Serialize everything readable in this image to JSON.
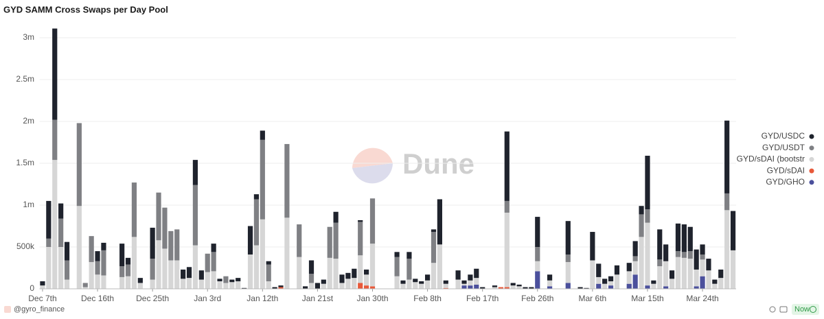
{
  "chart_data": {
    "type": "stacked_bar",
    "title": "GYD SAMM Cross Swaps per Day Pool",
    "categories": [
      "Dec 7th",
      null,
      null,
      null,
      null,
      null,
      null,
      null,
      null,
      "Dec 16th",
      null,
      null,
      null,
      null,
      null,
      null,
      null,
      null,
      "Dec 25th",
      null,
      null,
      null,
      null,
      null,
      null,
      null,
      null,
      "Jan 3rd",
      null,
      null,
      null,
      null,
      null,
      null,
      null,
      null,
      "Jan 12th",
      null,
      null,
      null,
      null,
      null,
      null,
      null,
      null,
      "Jan 21st",
      null,
      null,
      null,
      null,
      null,
      null,
      null,
      null,
      "Jan 30th",
      null,
      null,
      null,
      null,
      null,
      null,
      null,
      null,
      "Feb 8th",
      null,
      null,
      null,
      null,
      null,
      null,
      null,
      null,
      "Feb 17th",
      null,
      null,
      null,
      null,
      null,
      null,
      null,
      null,
      "Feb 26th",
      null,
      null,
      null,
      null,
      null,
      null,
      null,
      null,
      "Mar 6th",
      null,
      null,
      null,
      null,
      null,
      null,
      null,
      null,
      "Mar 15th",
      null,
      null,
      null,
      null,
      null,
      null,
      null,
      null,
      "Mar 24th",
      null,
      null,
      null,
      null,
      null
    ],
    "series": [
      {
        "name": "GYD/USDC",
        "color": "#1f232d",
        "values": [
          50000,
          450000,
          1090000,
          180000,
          220000,
          0,
          0,
          0,
          0,
          120000,
          90000,
          0,
          0,
          270000,
          80000,
          0,
          60000,
          0,
          370000,
          0,
          0,
          0,
          0,
          110000,
          130000,
          300000,
          110000,
          0,
          100000,
          30000,
          0,
          30000,
          40000,
          10000,
          340000,
          60000,
          110000,
          40000,
          20000,
          20000,
          0,
          0,
          0,
          30000,
          160000,
          70000,
          50000,
          0,
          130000,
          100000,
          70000,
          110000,
          20000,
          60000,
          0,
          0,
          0,
          0,
          60000,
          40000,
          80000,
          40000,
          30000,
          70000,
          30000,
          540000,
          40000,
          0,
          110000,
          40000,
          70000,
          110000,
          20000,
          0,
          20000,
          0,
          830000,
          30000,
          20000,
          20000,
          20000,
          360000,
          0,
          70000,
          0,
          0,
          400000,
          0,
          20000,
          10000,
          340000,
          160000,
          60000,
          60000,
          110000,
          0,
          100000,
          180000,
          100000,
          640000,
          40000,
          360000,
          200000,
          100000,
          330000,
          330000,
          290000,
          240000,
          120000,
          140000,
          50000,
          100000,
          870000,
          470000
        ]
      },
      {
        "name": "GYD/USDT",
        "color": "#7f8084",
        "values": [
          0,
          100000,
          480000,
          340000,
          230000,
          0,
          990000,
          50000,
          310000,
          160000,
          300000,
          0,
          0,
          130000,
          140000,
          650000,
          0,
          0,
          250000,
          570000,
          490000,
          350000,
          370000,
          0,
          0,
          720000,
          0,
          220000,
          230000,
          0,
          80000,
          0,
          0,
          0,
          0,
          550000,
          950000,
          200000,
          0,
          0,
          880000,
          0,
          390000,
          0,
          110000,
          0,
          0,
          370000,
          430000,
          0,
          0,
          0,
          400000,
          0,
          540000,
          0,
          0,
          0,
          230000,
          0,
          250000,
          0,
          0,
          0,
          370000,
          0,
          0,
          0,
          0,
          0,
          0,
          0,
          0,
          0,
          0,
          0,
          140000,
          0,
          0,
          0,
          0,
          170000,
          0,
          0,
          0,
          0,
          90000,
          0,
          0,
          0,
          0,
          0,
          0,
          0,
          0,
          0,
          0,
          60000,
          270000,
          160000,
          0,
          80000,
          0,
          0,
          70000,
          70000,
          90000,
          0,
          60000,
          0,
          0,
          0,
          200000,
          0
        ]
      },
      {
        "name": "GYD/sDAI (bootstr",
        "color": "#d6d6d6",
        "values": [
          40000,
          500000,
          1540000,
          500000,
          110000,
          0,
          990000,
          20000,
          320000,
          170000,
          160000,
          0,
          0,
          140000,
          150000,
          620000,
          70000,
          0,
          110000,
          580000,
          480000,
          340000,
          340000,
          120000,
          130000,
          520000,
          110000,
          200000,
          210000,
          90000,
          70000,
          80000,
          90000,
          0,
          410000,
          520000,
          830000,
          90000,
          0,
          0,
          850000,
          0,
          380000,
          0,
          70000,
          0,
          60000,
          370000,
          360000,
          70000,
          120000,
          130000,
          330000,
          130000,
          510000,
          0,
          0,
          0,
          150000,
          60000,
          110000,
          80000,
          60000,
          100000,
          310000,
          530000,
          50000,
          0,
          110000,
          20000,
          60000,
          80000,
          0,
          0,
          20000,
          0,
          890000,
          40000,
          30000,
          0,
          0,
          120000,
          0,
          70000,
          0,
          0,
          250000,
          0,
          0,
          0,
          340000,
          80000,
          60000,
          50000,
          170000,
          0,
          150000,
          160000,
          620000,
          750000,
          60000,
          270000,
          300000,
          120000,
          380000,
          370000,
          360000,
          200000,
          200000,
          220000,
          60000,
          130000,
          940000,
          460000
        ]
      },
      {
        "name": "GYD/sDAI",
        "color": "#e8593a",
        "values": [
          0,
          0,
          0,
          0,
          0,
          0,
          0,
          0,
          0,
          0,
          0,
          0,
          0,
          0,
          0,
          0,
          0,
          0,
          0,
          0,
          0,
          0,
          0,
          0,
          0,
          0,
          0,
          0,
          0,
          0,
          0,
          0,
          0,
          0,
          0,
          0,
          0,
          0,
          0,
          20000,
          0,
          0,
          0,
          0,
          0,
          0,
          0,
          0,
          0,
          0,
          0,
          0,
          70000,
          40000,
          30000,
          0,
          0,
          0,
          0,
          0,
          0,
          0,
          0,
          0,
          0,
          0,
          10000,
          0,
          0,
          0,
          0,
          0,
          0,
          0,
          0,
          20000,
          20000,
          0,
          0,
          0,
          0,
          0,
          0,
          0,
          0,
          0,
          0,
          0,
          0,
          0,
          0,
          0,
          0,
          0,
          0,
          0,
          0,
          0,
          0,
          0,
          0,
          0,
          0,
          0,
          0,
          0,
          0,
          0,
          0,
          0,
          0,
          0,
          0,
          0
        ]
      },
      {
        "name": "GYD/GHO",
        "color": "#4b509c",
        "values": [
          0,
          0,
          0,
          0,
          0,
          0,
          0,
          0,
          0,
          0,
          0,
          0,
          0,
          0,
          0,
          0,
          0,
          0,
          0,
          0,
          0,
          0,
          0,
          0,
          0,
          0,
          0,
          0,
          0,
          0,
          0,
          0,
          0,
          0,
          0,
          0,
          0,
          0,
          0,
          0,
          0,
          0,
          0,
          0,
          0,
          0,
          0,
          0,
          0,
          0,
          0,
          0,
          0,
          0,
          0,
          0,
          0,
          0,
          0,
          0,
          0,
          0,
          0,
          0,
          0,
          0,
          0,
          0,
          0,
          40000,
          40000,
          50000,
          0,
          0,
          0,
          0,
          0,
          0,
          0,
          0,
          0,
          210000,
          0,
          30000,
          0,
          0,
          70000,
          0,
          0,
          0,
          0,
          60000,
          0,
          40000,
          0,
          0,
          60000,
          170000,
          0,
          40000,
          0,
          0,
          30000,
          0,
          0,
          0,
          0,
          30000,
          150000,
          0,
          0,
          0,
          0,
          0
        ]
      }
    ],
    "ylim": [
      0,
      3200000
    ],
    "yticks": [
      0,
      {
        "value": 500000,
        "label": "500k"
      },
      {
        "value": 1000000,
        "label": "1m"
      },
      {
        "value": 1500000,
        "label": "1.5m"
      },
      {
        "value": 2000000,
        "label": "2m"
      },
      {
        "value": 2500000,
        "label": "2.5m"
      },
      {
        "value": 3000000,
        "label": "3m"
      }
    ],
    "grid": true,
    "legend_position": "right"
  },
  "watermark": "Dune",
  "footer": {
    "handle": "@gyro_finance",
    "status": "Now"
  }
}
